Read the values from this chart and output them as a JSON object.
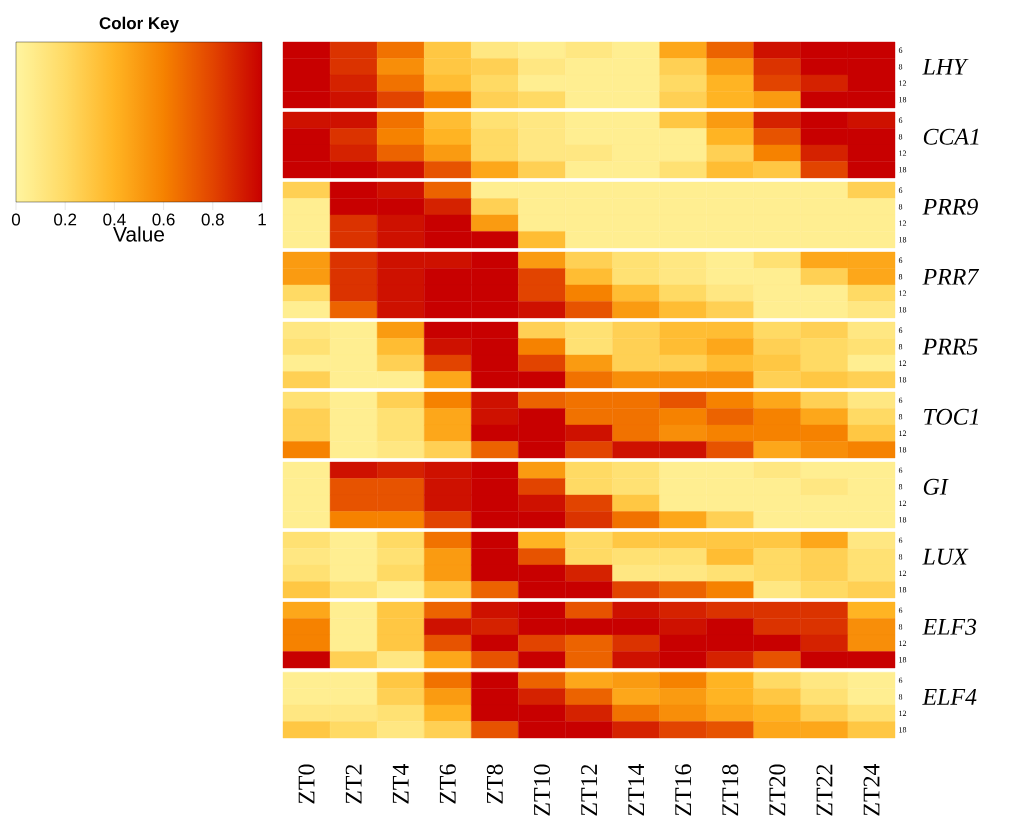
{
  "chart_data": {
    "type": "heatmap",
    "legend_title": "Color Key",
    "clabel": "Value",
    "clim": [
      0,
      1
    ],
    "cticks": [
      0,
      0.2,
      0.4,
      0.6,
      0.8,
      1
    ],
    "categories": [
      "ZT0",
      "ZT2",
      "ZT4",
      "ZT6",
      "ZT8",
      "ZT10",
      "ZT12",
      "ZT14",
      "ZT16",
      "ZT18",
      "ZT20",
      "ZT22",
      "ZT24"
    ],
    "y_categories": [
      "6",
      "8",
      "12",
      "18",
      "6",
      "8",
      "12",
      "18",
      "6",
      "8",
      "12",
      "18",
      "6",
      "8",
      "12",
      "18",
      "6",
      "8",
      "12",
      "18",
      "6",
      "8",
      "12",
      "18",
      "6",
      "8",
      "12",
      "18",
      "6",
      "8",
      "12",
      "18",
      "6",
      "8",
      "12",
      "18",
      "6",
      "8",
      "12",
      "18"
    ],
    "y2_categories": [
      null,
      "LHY",
      null,
      null,
      null,
      "CCA1",
      null,
      null,
      null,
      "PRR9",
      null,
      null,
      null,
      "PRR7",
      null,
      null,
      null,
      "PRR5",
      null,
      null,
      null,
      "TOC1",
      null,
      null,
      null,
      "GI",
      null,
      null,
      null,
      "LUX",
      null,
      null,
      null,
      "ELF3",
      null,
      null,
      null,
      "ELF4",
      null,
      null
    ],
    "cells": [
      [
        1,
        0.85,
        0.65,
        0.3,
        0.1,
        0.05,
        0.1,
        0.05,
        0.45,
        0.7,
        0.95,
        1,
        1
      ],
      [
        1,
        0.85,
        0.55,
        0.3,
        0.25,
        0.1,
        0.05,
        0.05,
        0.25,
        0.5,
        0.85,
        1,
        1
      ],
      [
        1,
        0.9,
        0.65,
        0.35,
        0.2,
        0.05,
        0.05,
        0.05,
        0.2,
        0.4,
        0.8,
        0.9,
        1
      ],
      [
        1,
        0.95,
        0.8,
        0.6,
        0.25,
        0.2,
        0.05,
        0.05,
        0.25,
        0.4,
        0.5,
        1,
        1
      ],
      [
        0.95,
        0.95,
        0.65,
        0.35,
        0.15,
        0.1,
        0.05,
        0.05,
        0.3,
        0.5,
        0.9,
        1,
        0.95
      ],
      [
        1,
        0.85,
        0.6,
        0.4,
        0.2,
        0.1,
        0.05,
        0.05,
        0.05,
        0.4,
        0.75,
        1,
        1
      ],
      [
        1,
        0.9,
        0.7,
        0.5,
        0.2,
        0.1,
        0.1,
        0.05,
        0.05,
        0.25,
        0.6,
        0.9,
        1
      ],
      [
        1,
        1,
        0.95,
        0.75,
        0.45,
        0.25,
        0.05,
        0.05,
        0.15,
        0.35,
        0.3,
        0.8,
        1
      ],
      [
        0.25,
        1,
        0.95,
        0.7,
        0.05,
        0.05,
        0.05,
        0.05,
        0.05,
        0.05,
        0.05,
        0.05,
        0.25
      ],
      [
        0.05,
        1,
        1,
        0.9,
        0.25,
        0.05,
        0.05,
        0.05,
        0.05,
        0.05,
        0.05,
        0.05,
        0.05
      ],
      [
        0.05,
        0.85,
        0.95,
        1,
        0.5,
        0.05,
        0.05,
        0.05,
        0.05,
        0.05,
        0.05,
        0.05,
        0.05
      ],
      [
        0.05,
        0.85,
        0.95,
        1,
        1,
        0.35,
        0.05,
        0.05,
        0.05,
        0.05,
        0.05,
        0.05,
        0.05
      ],
      [
        0.5,
        0.85,
        0.95,
        0.95,
        1,
        0.5,
        0.25,
        0.15,
        0.1,
        0.05,
        0.15,
        0.45,
        0.45
      ],
      [
        0.5,
        0.85,
        0.95,
        1,
        1,
        0.8,
        0.35,
        0.15,
        0.1,
        0.05,
        0.05,
        0.25,
        0.45
      ],
      [
        0.2,
        0.85,
        0.95,
        1,
        1,
        0.8,
        0.6,
        0.35,
        0.2,
        0.1,
        0.05,
        0.05,
        0.2
      ],
      [
        0.05,
        0.7,
        0.95,
        1,
        1,
        0.95,
        0.75,
        0.5,
        0.35,
        0.25,
        0.05,
        0.05,
        0.1
      ],
      [
        0.1,
        0.05,
        0.5,
        1,
        1,
        0.25,
        0.15,
        0.25,
        0.35,
        0.35,
        0.2,
        0.25,
        0.1
      ],
      [
        0.15,
        0.05,
        0.35,
        0.95,
        1,
        0.6,
        0.15,
        0.25,
        0.35,
        0.45,
        0.25,
        0.2,
        0.15
      ],
      [
        0.05,
        0.05,
        0.25,
        0.8,
        1,
        0.8,
        0.5,
        0.25,
        0.25,
        0.35,
        0.3,
        0.2,
        0.05
      ],
      [
        0.25,
        0.05,
        0.05,
        0.45,
        1,
        1,
        0.65,
        0.55,
        0.55,
        0.55,
        0.25,
        0.3,
        0.25
      ],
      [
        0.15,
        0.05,
        0.25,
        0.6,
        0.95,
        0.7,
        0.65,
        0.65,
        0.75,
        0.6,
        0.45,
        0.25,
        0.1
      ],
      [
        0.25,
        0.05,
        0.15,
        0.45,
        0.95,
        1,
        0.65,
        0.65,
        0.6,
        0.7,
        0.6,
        0.45,
        0.2
      ],
      [
        0.25,
        0.05,
        0.15,
        0.45,
        1,
        1,
        0.95,
        0.65,
        0.55,
        0.6,
        0.6,
        0.6,
        0.3
      ],
      [
        0.6,
        0.05,
        0.1,
        0.25,
        0.7,
        1,
        0.8,
        0.95,
        0.95,
        0.75,
        0.45,
        0.55,
        0.6
      ],
      [
        0.05,
        0.95,
        0.9,
        0.95,
        1,
        0.5,
        0.2,
        0.15,
        0.05,
        0.05,
        0.1,
        0.05,
        0.05
      ],
      [
        0.05,
        0.75,
        0.75,
        0.95,
        1,
        0.8,
        0.2,
        0.15,
        0.05,
        0.05,
        0.05,
        0.1,
        0.05
      ],
      [
        0.05,
        0.75,
        0.75,
        0.95,
        1,
        0.95,
        0.8,
        0.3,
        0.05,
        0.05,
        0.05,
        0.05,
        0.05
      ],
      [
        0.05,
        0.6,
        0.6,
        0.8,
        1,
        1,
        0.85,
        0.65,
        0.45,
        0.25,
        0.05,
        0.05,
        0.05
      ],
      [
        0.15,
        0.05,
        0.2,
        0.65,
        1,
        0.4,
        0.2,
        0.3,
        0.3,
        0.3,
        0.3,
        0.45,
        0.1
      ],
      [
        0.1,
        0.05,
        0.15,
        0.5,
        1,
        0.75,
        0.2,
        0.15,
        0.15,
        0.35,
        0.2,
        0.25,
        0.15
      ],
      [
        0.15,
        0.05,
        0.2,
        0.5,
        1,
        1,
        0.9,
        0.1,
        0.1,
        0.15,
        0.2,
        0.25,
        0.15
      ],
      [
        0.3,
        0.15,
        0.05,
        0.3,
        0.7,
        1,
        1,
        0.8,
        0.7,
        0.6,
        0.1,
        0.2,
        0.25
      ],
      [
        0.45,
        0.05,
        0.3,
        0.7,
        0.95,
        1,
        0.75,
        0.95,
        0.9,
        0.85,
        0.85,
        0.85,
        0.4
      ],
      [
        0.6,
        0.05,
        0.3,
        0.95,
        0.9,
        1,
        1,
        1,
        0.95,
        1,
        0.85,
        0.85,
        0.55
      ],
      [
        0.6,
        0.05,
        0.3,
        0.75,
        1,
        0.8,
        0.7,
        0.85,
        1,
        1,
        1,
        0.9,
        0.55
      ],
      [
        1,
        0.25,
        0.1,
        0.45,
        0.75,
        1,
        0.7,
        0.95,
        1,
        0.9,
        0.75,
        1,
        1
      ],
      [
        0.05,
        0.05,
        0.3,
        0.65,
        1,
        0.7,
        0.45,
        0.5,
        0.6,
        0.4,
        0.2,
        0.1,
        0.05
      ],
      [
        0.05,
        0.05,
        0.25,
        0.5,
        1,
        0.9,
        0.7,
        0.45,
        0.5,
        0.4,
        0.3,
        0.15,
        0.05
      ],
      [
        0.1,
        0.1,
        0.15,
        0.4,
        1,
        1,
        0.9,
        0.65,
        0.55,
        0.45,
        0.4,
        0.25,
        0.15
      ],
      [
        0.3,
        0.2,
        0.1,
        0.25,
        0.75,
        1,
        1,
        0.9,
        0.8,
        0.75,
        0.45,
        0.45,
        0.3
      ]
    ]
  }
}
